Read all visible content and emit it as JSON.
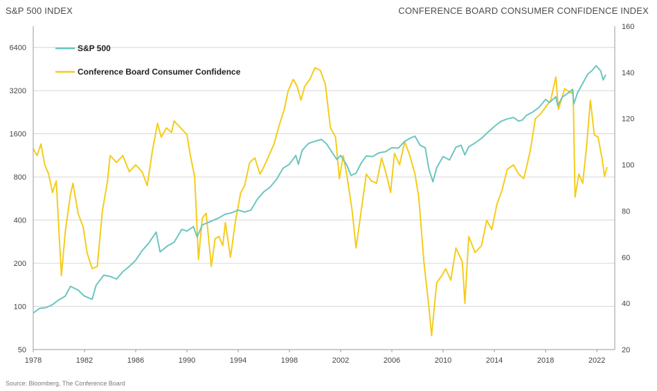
{
  "header": {
    "left_axis_title": "S&P 500 INDEX",
    "right_axis_title": "CONFERENCE BOARD CONSUMER CONFIDENCE INDEX"
  },
  "footer": {
    "source": "Source: Bloomberg, The Conference Board"
  },
  "chart_data": {
    "type": "line",
    "title": "",
    "x_ticks": [
      "1978",
      "1982",
      "1986",
      "1990",
      "1994",
      "1998",
      "2002",
      "2006",
      "2010",
      "2014",
      "2018",
      "2022"
    ],
    "x_range": [
      1978,
      2023.4
    ],
    "y_left": {
      "label": "S&P 500 INDEX",
      "scale": "log2",
      "range": [
        50,
        9000
      ],
      "ticks": [
        50,
        100,
        200,
        400,
        800,
        1600,
        3200,
        6400
      ]
    },
    "y_right": {
      "label": "CONFERENCE BOARD CONSUMER CONFIDENCE INDEX",
      "scale": "linear",
      "range": [
        20,
        160
      ],
      "ticks": [
        20,
        40,
        60,
        80,
        100,
        120,
        140,
        160
      ]
    },
    "grid": "horizontal",
    "legend_position": "top-left",
    "colors": {
      "sp500": "#6cc5bf",
      "confidence": "#f5cc1a"
    },
    "series": [
      {
        "name": "S&P 500",
        "axis": "left",
        "points": [
          [
            1978.0,
            90
          ],
          [
            1978.5,
            97
          ],
          [
            1979.0,
            98
          ],
          [
            1979.5,
            103
          ],
          [
            1980.0,
            111
          ],
          [
            1980.5,
            118
          ],
          [
            1980.9,
            138
          ],
          [
            1981.5,
            130
          ],
          [
            1982.0,
            118
          ],
          [
            1982.6,
            112
          ],
          [
            1982.9,
            140
          ],
          [
            1983.5,
            165
          ],
          [
            1984.0,
            162
          ],
          [
            1984.5,
            155
          ],
          [
            1985.0,
            175
          ],
          [
            1985.5,
            190
          ],
          [
            1986.0,
            210
          ],
          [
            1986.5,
            245
          ],
          [
            1987.0,
            275
          ],
          [
            1987.6,
            330
          ],
          [
            1987.9,
            240
          ],
          [
            1988.5,
            265
          ],
          [
            1989.0,
            280
          ],
          [
            1989.6,
            345
          ],
          [
            1990.0,
            335
          ],
          [
            1990.5,
            360
          ],
          [
            1990.8,
            305
          ],
          [
            1991.2,
            370
          ],
          [
            1991.8,
            390
          ],
          [
            1992.5,
            415
          ],
          [
            1993.0,
            440
          ],
          [
            1993.5,
            450
          ],
          [
            1994.0,
            470
          ],
          [
            1994.5,
            455
          ],
          [
            1995.0,
            470
          ],
          [
            1995.5,
            560
          ],
          [
            1996.0,
            630
          ],
          [
            1996.5,
            680
          ],
          [
            1997.0,
            770
          ],
          [
            1997.5,
            920
          ],
          [
            1998.0,
            980
          ],
          [
            1998.5,
            1130
          ],
          [
            1998.7,
            980
          ],
          [
            1999.0,
            1230
          ],
          [
            1999.5,
            1370
          ],
          [
            2000.0,
            1420
          ],
          [
            2000.5,
            1460
          ],
          [
            2000.9,
            1360
          ],
          [
            2001.3,
            1200
          ],
          [
            2001.7,
            1060
          ],
          [
            2002.0,
            1130
          ],
          [
            2002.5,
            960
          ],
          [
            2002.8,
            820
          ],
          [
            2003.2,
            850
          ],
          [
            2003.6,
            1000
          ],
          [
            2004.0,
            1120
          ],
          [
            2004.5,
            1110
          ],
          [
            2005.0,
            1180
          ],
          [
            2005.5,
            1200
          ],
          [
            2006.0,
            1280
          ],
          [
            2006.5,
            1270
          ],
          [
            2007.0,
            1420
          ],
          [
            2007.5,
            1500
          ],
          [
            2007.8,
            1540
          ],
          [
            2008.2,
            1330
          ],
          [
            2008.6,
            1280
          ],
          [
            2008.9,
            900
          ],
          [
            2009.2,
            740
          ],
          [
            2009.5,
            930
          ],
          [
            2010.0,
            1110
          ],
          [
            2010.5,
            1050
          ],
          [
            2011.0,
            1290
          ],
          [
            2011.4,
            1330
          ],
          [
            2011.7,
            1140
          ],
          [
            2012.0,
            1300
          ],
          [
            2012.5,
            1380
          ],
          [
            2013.0,
            1490
          ],
          [
            2013.5,
            1640
          ],
          [
            2014.0,
            1800
          ],
          [
            2014.5,
            1950
          ],
          [
            2015.0,
            2030
          ],
          [
            2015.5,
            2080
          ],
          [
            2015.9,
            1960
          ],
          [
            2016.2,
            2000
          ],
          [
            2016.5,
            2150
          ],
          [
            2017.0,
            2270
          ],
          [
            2017.5,
            2450
          ],
          [
            2018.0,
            2780
          ],
          [
            2018.3,
            2640
          ],
          [
            2018.8,
            2900
          ],
          [
            2018.95,
            2510
          ],
          [
            2019.3,
            2880
          ],
          [
            2019.8,
            3100
          ],
          [
            2020.1,
            3270
          ],
          [
            2020.2,
            2580
          ],
          [
            2020.5,
            3100
          ],
          [
            2020.9,
            3600
          ],
          [
            2021.3,
            4180
          ],
          [
            2021.6,
            4400
          ],
          [
            2021.95,
            4770
          ],
          [
            2022.3,
            4400
          ],
          [
            2022.5,
            3800
          ],
          [
            2022.7,
            4130
          ]
        ]
      },
      {
        "name": "Conference Board Consumer Confidence",
        "axis": "right",
        "points": [
          [
            1978.0,
            107
          ],
          [
            1978.3,
            104
          ],
          [
            1978.6,
            109
          ],
          [
            1978.9,
            100
          ],
          [
            1979.2,
            96
          ],
          [
            1979.5,
            88
          ],
          [
            1979.8,
            93
          ],
          [
            1980.0,
            72
          ],
          [
            1980.2,
            52
          ],
          [
            1980.5,
            71
          ],
          [
            1980.9,
            87
          ],
          [
            1981.1,
            92
          ],
          [
            1981.5,
            79
          ],
          [
            1981.9,
            73
          ],
          [
            1982.2,
            62
          ],
          [
            1982.6,
            55
          ],
          [
            1983.0,
            56
          ],
          [
            1983.4,
            80
          ],
          [
            1983.8,
            93
          ],
          [
            1984.0,
            104
          ],
          [
            1984.5,
            101
          ],
          [
            1985.0,
            104
          ],
          [
            1985.5,
            97
          ],
          [
            1986.0,
            100
          ],
          [
            1986.5,
            97
          ],
          [
            1986.9,
            91
          ],
          [
            1987.3,
            106
          ],
          [
            1987.7,
            118
          ],
          [
            1988.0,
            112
          ],
          [
            1988.4,
            116
          ],
          [
            1988.8,
            114
          ],
          [
            1989.0,
            119
          ],
          [
            1989.5,
            116
          ],
          [
            1990.0,
            113
          ],
          [
            1990.3,
            103
          ],
          [
            1990.6,
            95
          ],
          [
            1990.9,
            59
          ],
          [
            1991.2,
            77
          ],
          [
            1991.5,
            79
          ],
          [
            1991.9,
            56
          ],
          [
            1992.2,
            68
          ],
          [
            1992.5,
            69
          ],
          [
            1992.8,
            65
          ],
          [
            1993.0,
            75
          ],
          [
            1993.4,
            60
          ],
          [
            1993.8,
            76
          ],
          [
            1994.2,
            88
          ],
          [
            1994.5,
            91
          ],
          [
            1994.9,
            101
          ],
          [
            1995.3,
            103
          ],
          [
            1995.7,
            96
          ],
          [
            1996.0,
            99
          ],
          [
            1996.4,
            104
          ],
          [
            1996.8,
            109
          ],
          [
            1997.2,
            117
          ],
          [
            1997.6,
            124
          ],
          [
            1997.9,
            132
          ],
          [
            1998.3,
            137
          ],
          [
            1998.6,
            134
          ],
          [
            1998.9,
            128
          ],
          [
            1999.2,
            134
          ],
          [
            1999.6,
            137
          ],
          [
            2000.0,
            142
          ],
          [
            2000.4,
            141
          ],
          [
            2000.8,
            135
          ],
          [
            2001.2,
            116
          ],
          [
            2001.6,
            112
          ],
          [
            2001.9,
            94
          ],
          [
            2002.2,
            104
          ],
          [
            2002.5,
            95
          ],
          [
            2002.9,
            80
          ],
          [
            2003.2,
            64
          ],
          [
            2003.6,
            80
          ],
          [
            2004.0,
            96
          ],
          [
            2004.4,
            93
          ],
          [
            2004.8,
            92
          ],
          [
            2005.2,
            103
          ],
          [
            2005.6,
            95
          ],
          [
            2005.9,
            88
          ],
          [
            2006.2,
            105
          ],
          [
            2006.6,
            100
          ],
          [
            2007.0,
            110
          ],
          [
            2007.4,
            104
          ],
          [
            2007.8,
            96
          ],
          [
            2008.1,
            86
          ],
          [
            2008.5,
            58
          ],
          [
            2008.9,
            38
          ],
          [
            2009.1,
            26
          ],
          [
            2009.5,
            49
          ],
          [
            2009.9,
            52
          ],
          [
            2010.2,
            55
          ],
          [
            2010.6,
            50
          ],
          [
            2011.0,
            64
          ],
          [
            2011.5,
            58
          ],
          [
            2011.7,
            40
          ],
          [
            2012.0,
            69
          ],
          [
            2012.5,
            62
          ],
          [
            2013.0,
            65
          ],
          [
            2013.4,
            76
          ],
          [
            2013.8,
            72
          ],
          [
            2014.2,
            83
          ],
          [
            2014.6,
            89
          ],
          [
            2015.0,
            98
          ],
          [
            2015.5,
            100
          ],
          [
            2015.9,
            96
          ],
          [
            2016.3,
            94
          ],
          [
            2016.8,
            106
          ],
          [
            2017.2,
            120
          ],
          [
            2017.6,
            122
          ],
          [
            2018.0,
            125
          ],
          [
            2018.4,
            128
          ],
          [
            2018.8,
            138
          ],
          [
            2019.0,
            124
          ],
          [
            2019.5,
            133
          ],
          [
            2020.0,
            131
          ],
          [
            2020.15,
            132
          ],
          [
            2020.3,
            86
          ],
          [
            2020.6,
            96
          ],
          [
            2020.9,
            92
          ],
          [
            2021.2,
            108
          ],
          [
            2021.5,
            128
          ],
          [
            2021.8,
            113
          ],
          [
            2022.1,
            112
          ],
          [
            2022.4,
            103
          ],
          [
            2022.6,
            95
          ],
          [
            2022.8,
            99
          ]
        ]
      }
    ]
  }
}
